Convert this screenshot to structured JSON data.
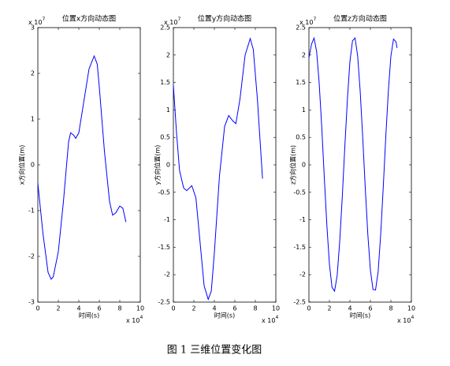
{
  "chart_data": [
    {
      "type": "line",
      "title": "位置x方向动态图",
      "xlabel": "时间(s)",
      "ylabel": "x方向位置(m)",
      "x_multiplier": {
        "text": "x 10",
        "power": "4"
      },
      "y_multiplier": {
        "text": "x 10",
        "power": "7"
      },
      "xlim": [
        0,
        10
      ],
      "xticks": [
        0,
        2,
        4,
        6,
        8,
        10
      ],
      "ylim": [
        -3,
        3
      ],
      "yticks": [
        -3,
        -2,
        -1,
        0,
        1,
        2,
        3
      ],
      "color": "#0000ff",
      "x": [
        0,
        0.5,
        1,
        1.3,
        1.5,
        2,
        2.5,
        3,
        3.2,
        3.5,
        3.7,
        4,
        4.5,
        5,
        5.5,
        5.8,
        6,
        6.5,
        7,
        7.3,
        7.6,
        8,
        8.3,
        8.6
      ],
      "values": [
        -0.4,
        -1.5,
        -2.35,
        -2.5,
        -2.45,
        -1.9,
        -0.8,
        0.5,
        0.7,
        0.65,
        0.58,
        0.7,
        1.4,
        2.1,
        2.38,
        2.2,
        1.7,
        0.3,
        -0.8,
        -1.1,
        -1.05,
        -0.9,
        -0.95,
        -1.25
      ]
    },
    {
      "type": "line",
      "title": "位置y方向动态图",
      "xlabel": "时间(s)",
      "ylabel": "y方向位置(m)",
      "x_multiplier": {
        "text": "x 10",
        "power": "4"
      },
      "y_multiplier": {
        "text": "x 10",
        "power": "7"
      },
      "xlim": [
        0,
        10
      ],
      "xticks": [
        0,
        2,
        4,
        6,
        8,
        10
      ],
      "ylim": [
        -2.5,
        2.5
      ],
      "yticks": [
        -2.5,
        -2,
        -1.5,
        -1,
        -0.5,
        0,
        0.5,
        1,
        1.5,
        2,
        2.5
      ],
      "color": "#0000ff",
      "x": [
        0,
        0.3,
        0.6,
        1,
        1.3,
        1.8,
        2.2,
        2.6,
        3,
        3.4,
        3.7,
        4,
        4.5,
        5,
        5.4,
        5.8,
        6.1,
        6.5,
        7,
        7.5,
        7.8,
        8.2,
        8.7
      ],
      "values": [
        1.45,
        0.6,
        -0.1,
        -0.42,
        -0.47,
        -0.38,
        -0.6,
        -1.4,
        -2.2,
        -2.45,
        -2.3,
        -1.6,
        -0.2,
        0.7,
        0.9,
        0.8,
        0.75,
        1.2,
        2,
        2.3,
        2.1,
        1.2,
        -0.25
      ]
    },
    {
      "type": "line",
      "title": "位置z方向动态图",
      "xlabel": "时间(s)",
      "ylabel": "z方向位置(m)",
      "x_multiplier": {
        "text": "x 10",
        "power": "4"
      },
      "y_multiplier": {
        "text": "x 10",
        "power": "7"
      },
      "xlim": [
        0,
        10
      ],
      "xticks": [
        0,
        2,
        4,
        6,
        8,
        10
      ],
      "ylim": [
        -2.5,
        2.5
      ],
      "yticks": [
        -2.5,
        -2,
        -1.5,
        -1,
        -0.5,
        0,
        0.5,
        1,
        1.5,
        2,
        2.5
      ],
      "color": "#0000ff",
      "x": [
        0,
        0.25,
        0.5,
        0.75,
        1,
        1.25,
        1.5,
        1.75,
        2,
        2.25,
        2.5,
        2.75,
        3,
        3.25,
        3.5,
        3.75,
        4,
        4.25,
        4.5,
        4.75,
        5,
        5.25,
        5.5,
        5.75,
        6,
        6.25,
        6.5,
        6.75,
        7,
        7.25,
        7.5,
        7.75,
        8,
        8.25,
        8.5,
        8.6
      ],
      "values": [
        1.95,
        2.2,
        2.31,
        2.06,
        1.49,
        0.68,
        -0.23,
        -1.11,
        -1.81,
        -2.23,
        -2.3,
        -2.02,
        -1.41,
        -0.59,
        0.32,
        1.19,
        1.88,
        2.26,
        2.31,
        1.99,
        1.35,
        0.49,
        -0.43,
        -1.28,
        -1.92,
        -2.27,
        -2.28,
        -1.95,
        -1.28,
        -0.41,
        0.51,
        1.35,
        1.98,
        2.29,
        2.24,
        2.13
      ]
    }
  ],
  "caption": "图 1  三维位置变化图"
}
